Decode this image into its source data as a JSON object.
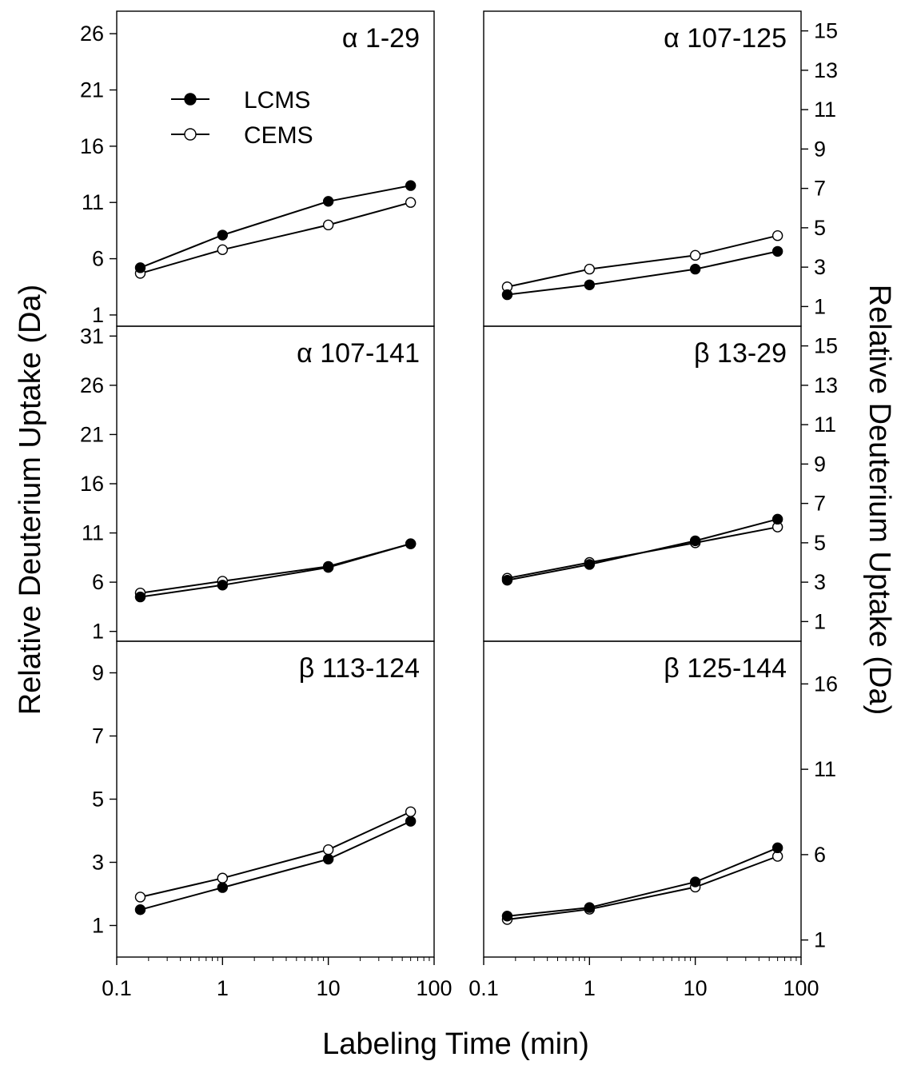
{
  "chart_data": {
    "type": "line",
    "x_scale": "log",
    "xlabel": "Labeling Time (min)",
    "ylabel_left": "Relative Deuterium Uptake (Da)",
    "ylabel_right": "Relative Deuterium Uptake (Da)",
    "x_ticks": [
      0.1,
      1,
      10,
      100
    ],
    "x_tick_labels": [
      "0.1",
      "1",
      "10",
      "100"
    ],
    "x": [
      0.167,
      1,
      10,
      60
    ],
    "legend": {
      "placement": "inside top-left of first panel",
      "entries": [
        {
          "name": "LCMS",
          "marker": "filled-circle"
        },
        {
          "name": "CEMS",
          "marker": "open-circle"
        }
      ]
    },
    "colors": {
      "line": "#000000",
      "filled_marker": "#000000",
      "open_marker": "#ffffff"
    },
    "panels": [
      {
        "title": "α 1-29",
        "row": 0,
        "col": 0,
        "axis_side": "left",
        "ylim": [
          0,
          28
        ],
        "yticks": [
          1,
          6,
          11,
          16,
          21,
          26
        ],
        "series": [
          {
            "name": "LCMS",
            "values": [
              5.2,
              8.1,
              11.1,
              12.5
            ]
          },
          {
            "name": "CEMS",
            "values": [
              4.7,
              6.8,
              9.0,
              11.0
            ]
          }
        ]
      },
      {
        "title": "α 107-125",
        "row": 0,
        "col": 1,
        "axis_side": "right",
        "ylim": [
          0,
          16
        ],
        "yticks": [
          1,
          3,
          5,
          7,
          9,
          11,
          13,
          15
        ],
        "series": [
          {
            "name": "LCMS",
            "values": [
              1.6,
              2.1,
              2.9,
              3.8
            ]
          },
          {
            "name": "CEMS",
            "values": [
              2.0,
              2.9,
              3.6,
              4.6
            ]
          }
        ]
      },
      {
        "title": "α 107-141",
        "row": 1,
        "col": 0,
        "axis_side": "left",
        "ylim": [
          0,
          32
        ],
        "yticks": [
          1,
          6,
          11,
          16,
          21,
          26,
          31
        ],
        "series": [
          {
            "name": "LCMS",
            "values": [
              4.5,
              5.7,
              7.5,
              9.9
            ]
          },
          {
            "name": "CEMS",
            "values": [
              4.9,
              6.1,
              7.6,
              9.9
            ]
          }
        ]
      },
      {
        "title": "β 13-29",
        "row": 1,
        "col": 1,
        "axis_side": "right",
        "ylim": [
          0,
          16
        ],
        "yticks": [
          1,
          3,
          5,
          7,
          9,
          11,
          13,
          15
        ],
        "series": [
          {
            "name": "LCMS",
            "values": [
              3.1,
              3.9,
              5.1,
              6.2
            ]
          },
          {
            "name": "CEMS",
            "values": [
              3.2,
              4.0,
              5.0,
              5.8
            ]
          }
        ]
      },
      {
        "title": "β 113-124",
        "row": 2,
        "col": 0,
        "axis_side": "left",
        "ylim": [
          0,
          10
        ],
        "yticks": [
          1,
          3,
          5,
          7,
          9
        ],
        "series": [
          {
            "name": "LCMS",
            "values": [
              1.5,
              2.2,
              3.1,
              4.3
            ]
          },
          {
            "name": "CEMS",
            "values": [
              1.9,
              2.5,
              3.4,
              4.6
            ]
          }
        ]
      },
      {
        "title": "β 125-144",
        "row": 2,
        "col": 1,
        "axis_side": "right",
        "ylim": [
          0,
          18.5
        ],
        "yticks": [
          1,
          6,
          11,
          16
        ],
        "series": [
          {
            "name": "LCMS",
            "values": [
              2.4,
              2.9,
              4.4,
              6.4
            ]
          },
          {
            "name": "CEMS",
            "values": [
              2.2,
              2.8,
              4.1,
              5.9
            ]
          }
        ]
      }
    ]
  }
}
